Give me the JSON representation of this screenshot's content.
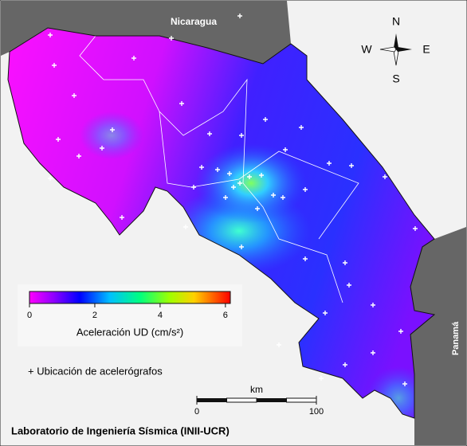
{
  "map": {
    "labels": {
      "north_country": "Nicaragua",
      "south_country": "Panamá"
    },
    "compass": {
      "n": "N",
      "w": "W",
      "e": "E",
      "s": "S"
    },
    "colorbar": {
      "title": "Aceleración UD (cm/s²)",
      "range": [
        0,
        6.15
      ],
      "ticks": [
        0,
        2,
        4,
        6
      ]
    },
    "legend": "+ Ubicación de acelerógrafos",
    "scale_bar": {
      "unit": "km",
      "ticks": [
        0,
        100
      ]
    },
    "credit": "Laboratorio de Ingeniería Sísmica (INII-UCR)"
  }
}
